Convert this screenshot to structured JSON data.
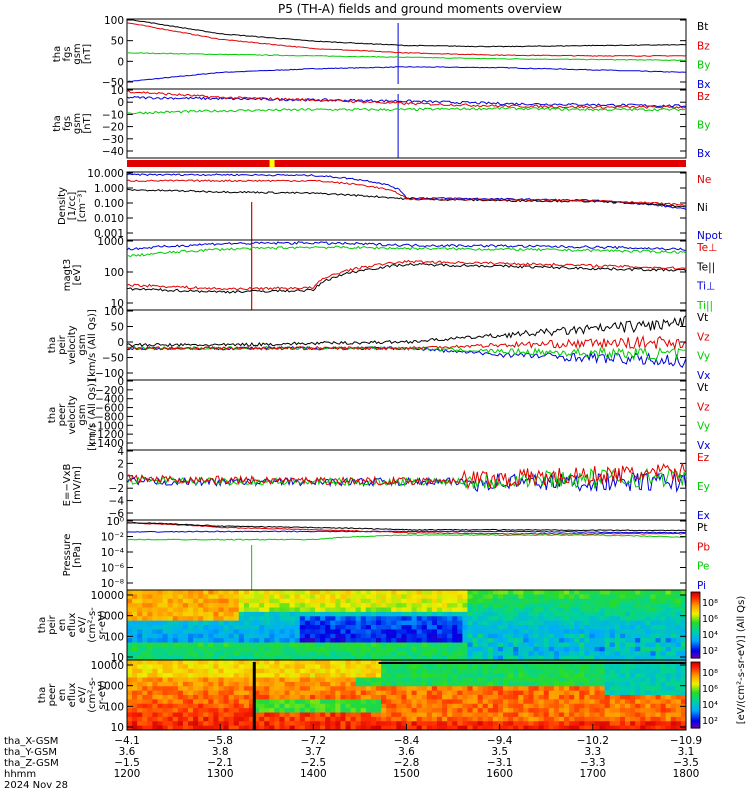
{
  "title": "P5 (TH-A) fields and ground moments overview",
  "colors": {
    "black": "#000000",
    "red": "#e00000",
    "green": "#00cc00",
    "blue": "#0000d8",
    "yellow": "#ffff00"
  },
  "panels": [
    {
      "id": "fgs_gsm",
      "ylabel": [
        "tha",
        "fgs",
        "gsm",
        "[nT]"
      ],
      "yticks": [
        "100",
        "50",
        "0",
        "−50"
      ],
      "legend": [
        {
          "t": "Bt",
          "c": "black"
        },
        {
          "t": "Bz",
          "c": "red"
        },
        {
          "t": "By",
          "c": "green"
        },
        {
          "t": "Bx",
          "c": "blue"
        }
      ]
    },
    {
      "id": "fgs_dsl",
      "ylabel": [
        "tha",
        "fgs",
        "gsm",
        "[nT]"
      ],
      "yticks": [
        "10",
        "0",
        "−10",
        "−20",
        "−30",
        "−40"
      ],
      "legend": [
        {
          "t": "Bz",
          "c": "red"
        },
        {
          "t": "By",
          "c": "green"
        },
        {
          "t": "Bx",
          "c": "blue"
        }
      ]
    },
    {
      "id": "density",
      "ylabel": [
        "Density",
        "[1/cc]",
        "[cm⁻³]"
      ],
      "yticks": [
        "10.000",
        "1.000",
        "0.100",
        "0.010",
        "0.001"
      ],
      "legend": [
        {
          "t": "Ne",
          "c": "red"
        },
        {
          "t": "Ni",
          "c": "black"
        },
        {
          "t": "Npot",
          "c": "blue"
        }
      ]
    },
    {
      "id": "temperature",
      "ylabel": [
        "magt3",
        "[eV]"
      ],
      "yticks": [
        "1000",
        "100",
        "10"
      ],
      "legend": [
        {
          "t": "Te⊥",
          "c": "red"
        },
        {
          "t": "Te||",
          "c": "black"
        },
        {
          "t": "Ti⊥",
          "c": "blue"
        },
        {
          "t": "Ti||",
          "c": "green"
        }
      ]
    },
    {
      "id": "peir_velocity",
      "ylabel": [
        "tha",
        "peir",
        "velocity",
        "gsm",
        "[km/s (All Qs)]"
      ],
      "yticks": [
        "100",
        "50",
        "0",
        "−50",
        "−100"
      ],
      "legend": [
        {
          "t": "Vt",
          "c": "black"
        },
        {
          "t": "Vz",
          "c": "red"
        },
        {
          "t": "Vy",
          "c": "green"
        },
        {
          "t": "Vx",
          "c": "blue"
        }
      ]
    },
    {
      "id": "peer_velocity",
      "ylabel": [
        "tha",
        "peer",
        "velocity",
        "gsm",
        "[km/s (All Qs)]"
      ],
      "yticks": [
        "0",
        "−200",
        "−400",
        "−600",
        "−800",
        "−1000",
        "−1200",
        "−1400"
      ],
      "legend": [
        {
          "t": "Vt",
          "c": "black"
        },
        {
          "t": "Vz",
          "c": "red"
        },
        {
          "t": "Vy",
          "c": "green"
        },
        {
          "t": "Vx",
          "c": "blue"
        }
      ]
    },
    {
      "id": "efield",
      "ylabel": [
        "E=−VxB",
        "[mV/m]"
      ],
      "yticks": [
        "4",
        "2",
        "0",
        "−2",
        "−4",
        "−6"
      ],
      "legend": [
        {
          "t": "Ez",
          "c": "red"
        },
        {
          "t": "Ey",
          "c": "green"
        },
        {
          "t": "Ex",
          "c": "blue"
        }
      ]
    },
    {
      "id": "pressure",
      "ylabel": [
        "Pressure",
        "[nPa]"
      ],
      "yticks": [
        "10⁰",
        "10⁻²",
        "10⁻⁴",
        "10⁻⁶",
        "10⁻⁸"
      ],
      "legend": [
        {
          "t": "Pt",
          "c": "black"
        },
        {
          "t": "Pb",
          "c": "red"
        },
        {
          "t": "Pe",
          "c": "green"
        },
        {
          "t": "Pi",
          "c": "blue"
        }
      ]
    },
    {
      "id": "peir_eflux",
      "ylabel": [
        "tha",
        "peir",
        "en",
        "eflux",
        "eV/",
        "(cm²-s-",
        "sr-eV)"
      ],
      "yticks": [
        "10000",
        "1000",
        "100",
        "10"
      ],
      "legend": []
    },
    {
      "id": "peer_eflux",
      "ylabel": [
        "tha",
        "peer",
        "en",
        "eflux",
        "eV/",
        "(cm²-s-",
        "sr-eV)"
      ],
      "yticks": [
        "10000",
        "1000",
        "100",
        "10"
      ],
      "legend": []
    }
  ],
  "colorbar": {
    "label": "[eV/(cm²-s-sr-eV)] (All Qs)",
    "ticks": [
      "10⁸",
      "10⁶",
      "10⁴",
      "10²",
      "10⁸",
      "10⁶",
      "10⁴",
      "10²"
    ]
  },
  "x_axis": {
    "rows": [
      {
        "label": "tha_X-GSM",
        "values": [
          "−4.1",
          "−5.8",
          "−7.2",
          "−8.4",
          "−9.4",
          "−10.2",
          "−10.9"
        ]
      },
      {
        "label": "tha_Y-GSM",
        "values": [
          "3.6",
          "3.8",
          "3.7",
          "3.6",
          "3.5",
          "3.3",
          "3.1"
        ]
      },
      {
        "label": "tha_Z-GSM",
        "values": [
          "−1.5",
          "−2.1",
          "−2.5",
          "−2.8",
          "−3.1",
          "−3.3",
          "−3.5"
        ]
      },
      {
        "label": "hhmm",
        "values": [
          "1200",
          "1300",
          "1400",
          "1500",
          "1600",
          "1700",
          "1800"
        ]
      }
    ],
    "date": "2024 Nov 28"
  },
  "chart_data": {
    "type": "line",
    "title": "P5 (TH-A) fields and ground moments overview",
    "x": [
      1200,
      1300,
      1400,
      1500,
      1600,
      1700,
      1800
    ],
    "xlabel": "hhmm",
    "date": "2024 Nov 28",
    "panels": [
      {
        "name": "fgs_gsm",
        "units": "nT",
        "ylim": [
          -80,
          110
        ],
        "series": [
          {
            "name": "Bt",
            "values": [
              110,
              70,
              50,
              38,
              35,
              38,
              40
            ]
          },
          {
            "name": "Bz",
            "values": [
              100,
              55,
              30,
              18,
              12,
              10,
              10
            ]
          },
          {
            "name": "By",
            "values": [
              18,
              14,
              10,
              6,
              2,
              0,
              -2
            ]
          },
          {
            "name": "Bx",
            "values": [
              -60,
              -35,
              -25,
              -20,
              -22,
              -28,
              -35
            ]
          }
        ]
      },
      {
        "name": "fgs_dsl",
        "units": "nT",
        "ylim": [
          -45,
          12
        ],
        "series": [
          {
            "name": "Bz",
            "values": [
              10,
              5,
              3,
              0,
              -2,
              -3,
              -3
            ]
          },
          {
            "name": "By",
            "values": [
              -8,
              -6,
              -5,
              -5,
              -4,
              -5,
              -5
            ]
          },
          {
            "name": "Bx",
            "values": [
              5,
              4,
              3,
              2,
              0,
              -1,
              -2
            ]
          }
        ]
      },
      {
        "name": "density",
        "units": "1/cc",
        "ylim": [
          0.001,
          30
        ],
        "series": [
          {
            "name": "Ne",
            "values": [
              8,
              8,
              8,
              0.5,
              0.45,
              0.4,
              0.2
            ]
          },
          {
            "name": "Ni",
            "values": [
              2,
              1.5,
              1.2,
              0.5,
              0.4,
              0.35,
              0.15
            ]
          },
          {
            "name": "Npot",
            "values": [
              20,
              20,
              18,
              0.6,
              0.5,
              0.4,
              0.1
            ]
          }
        ]
      },
      {
        "name": "temperature",
        "units": "eV",
        "ylim": [
          5,
          5000
        ],
        "series": [
          {
            "name": "Te⊥",
            "values": [
              60,
              40,
              45,
              600,
              500,
              400,
              300
            ]
          },
          {
            "name": "Te||",
            "values": [
              40,
              30,
              35,
              450,
              380,
              300,
              250
            ]
          },
          {
            "name": "Ti⊥",
            "values": [
              2000,
              3500,
              3800,
              3000,
              2800,
              2500,
              2000
            ]
          },
          {
            "name": "Ti||",
            "values": [
              1000,
              2000,
              2500,
              2200,
              2000,
              1800,
              1500
            ]
          }
        ]
      },
      {
        "name": "peir_velocity",
        "units": "km/s",
        "ylim": [
          -100,
          120
        ],
        "series": [
          {
            "name": "Vt",
            "values": [
              10,
              10,
              15,
              20,
              40,
              60,
              80
            ]
          },
          {
            "name": "Vz",
            "values": [
              0,
              0,
              0,
              0,
              10,
              15,
              20
            ]
          },
          {
            "name": "Vy",
            "values": [
              0,
              0,
              0,
              0,
              -10,
              -15,
              -20
            ]
          },
          {
            "name": "Vx",
            "values": [
              0,
              0,
              0,
              0,
              -20,
              -30,
              -40
            ]
          }
        ]
      },
      {
        "name": "peer_velocity",
        "units": "km/s",
        "ylim": [
          -1400,
          0
        ],
        "series": []
      },
      {
        "name": "efield",
        "units": "mV/m",
        "ylim": [
          -6,
          5
        ],
        "series": [
          {
            "name": "Ez",
            "values": [
              0.5,
              0.3,
              0.2,
              0.1,
              0.5,
              1,
              1.5
            ]
          },
          {
            "name": "Ey",
            "values": [
              0.2,
              0.1,
              0,
              0,
              0.3,
              0.5,
              0.8
            ]
          },
          {
            "name": "Ex",
            "values": [
              0,
              0,
              0,
              0,
              0,
              0,
              0
            ]
          }
        ]
      },
      {
        "name": "pressure",
        "units": "nPa",
        "ylim": [
          1e-09,
          2
        ],
        "series": [
          {
            "name": "Pt",
            "values": [
              0.9,
              0.3,
              0.2,
              0.1,
              0.1,
              0.09,
              0.08
            ]
          },
          {
            "name": "Pb",
            "values": [
              0.8,
              0.2,
              0.1,
              0.04,
              0.03,
              0.03,
              0.03
            ]
          },
          {
            "name": "Pe",
            "values": [
              0.005,
              0.005,
              0.005,
              0.02,
              0.02,
              0.02,
              0.01
            ]
          },
          {
            "name": "Pi",
            "values": [
              0.05,
              0.06,
              0.06,
              0.06,
              0.06,
              0.05,
              0.04
            ]
          }
        ]
      }
    ]
  }
}
